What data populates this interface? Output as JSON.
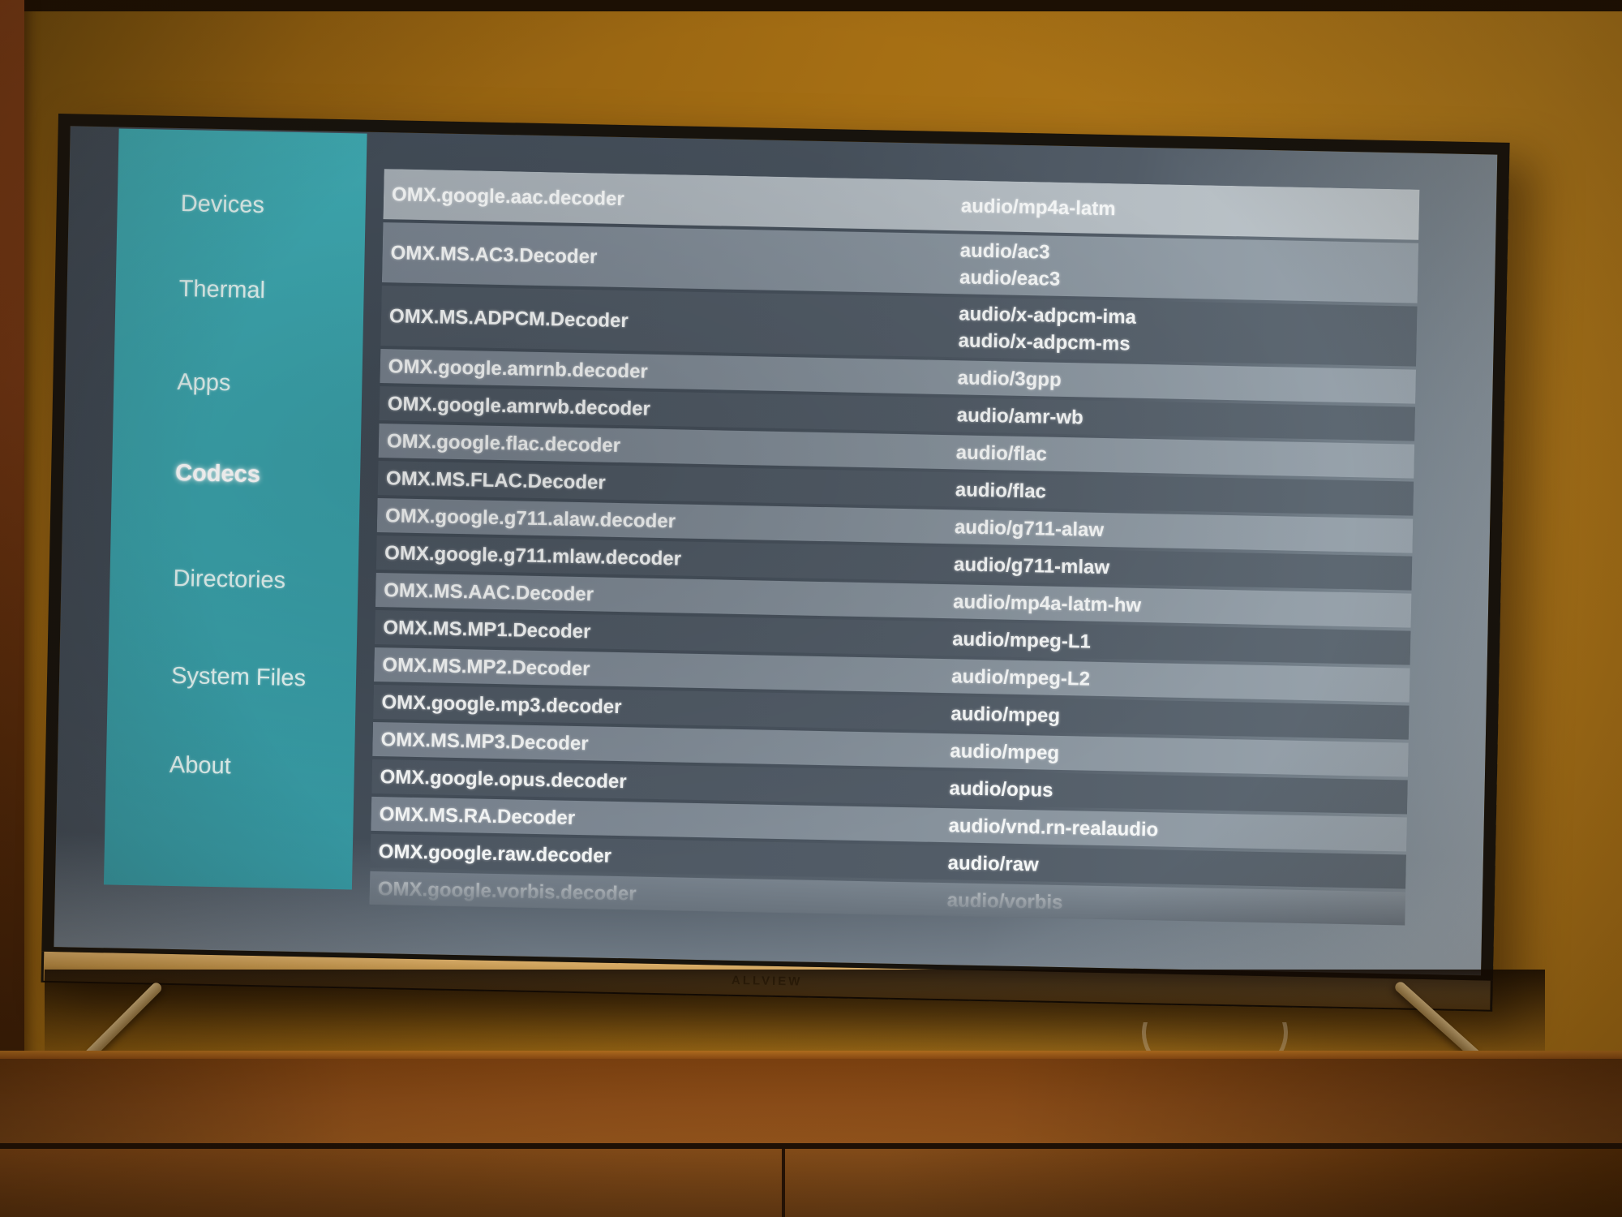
{
  "tv": {
    "brand": "ALLVIEW",
    "accent_color": "#3aa2ab",
    "selected_row_color": "#b2bac0",
    "row_light_color": "#87929c",
    "row_dark_color": "#525c67"
  },
  "sidebar": {
    "items": [
      {
        "label": "Devices",
        "selected": false
      },
      {
        "label": "Thermal",
        "selected": false
      },
      {
        "label": "Apps",
        "selected": false
      },
      {
        "label": "Codecs",
        "selected": true
      },
      {
        "label": "Directories",
        "selected": false
      },
      {
        "label": "System Files",
        "selected": false
      },
      {
        "label": "About",
        "selected": false
      }
    ]
  },
  "codec_list": {
    "rows": [
      {
        "name": "OMX.google.aac.decoder",
        "mime": "audio/mp4a-latm",
        "tone": "selected"
      },
      {
        "name": "OMX.MS.AC3.Decoder",
        "mime": "audio/ac3\naudio/eac3",
        "tone": "light"
      },
      {
        "name": "OMX.MS.ADPCM.Decoder",
        "mime": "audio/x-adpcm-ima\naudio/x-adpcm-ms",
        "tone": "dark"
      },
      {
        "name": "OMX.google.amrnb.decoder",
        "mime": "audio/3gpp",
        "tone": "light"
      },
      {
        "name": "OMX.google.amrwb.decoder",
        "mime": "audio/amr-wb",
        "tone": "dark"
      },
      {
        "name": "OMX.google.flac.decoder",
        "mime": "audio/flac",
        "tone": "light"
      },
      {
        "name": "OMX.MS.FLAC.Decoder",
        "mime": "audio/flac",
        "tone": "dark"
      },
      {
        "name": "OMX.google.g711.alaw.decoder",
        "mime": "audio/g711-alaw",
        "tone": "light"
      },
      {
        "name": "OMX.google.g711.mlaw.decoder",
        "mime": "audio/g711-mlaw",
        "tone": "dark"
      },
      {
        "name": "OMX.MS.AAC.Decoder",
        "mime": "audio/mp4a-latm-hw",
        "tone": "light"
      },
      {
        "name": "OMX.MS.MP1.Decoder",
        "mime": "audio/mpeg-L1",
        "tone": "dark"
      },
      {
        "name": "OMX.MS.MP2.Decoder",
        "mime": "audio/mpeg-L2",
        "tone": "light"
      },
      {
        "name": "OMX.google.mp3.decoder",
        "mime": "audio/mpeg",
        "tone": "dark"
      },
      {
        "name": "OMX.MS.MP3.Decoder",
        "mime": "audio/mpeg",
        "tone": "light"
      },
      {
        "name": "OMX.google.opus.decoder",
        "mime": "audio/opus",
        "tone": "dark"
      },
      {
        "name": "OMX.MS.RA.Decoder",
        "mime": "audio/vnd.rn-realaudio",
        "tone": "light"
      },
      {
        "name": "OMX.google.raw.decoder",
        "mime": "audio/raw",
        "tone": "dark"
      },
      {
        "name": "OMX.google.vorbis.decoder",
        "mime": "audio/vorbis",
        "tone": "light"
      }
    ]
  }
}
